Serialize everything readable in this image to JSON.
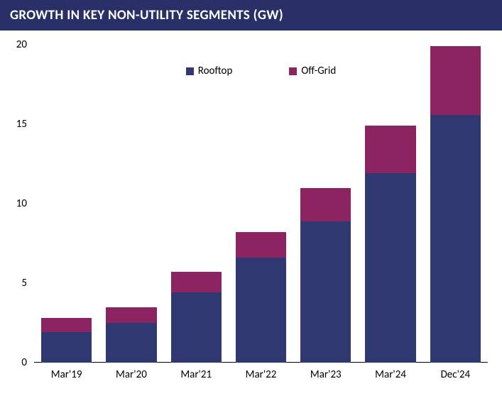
{
  "header": {
    "title": "GROWTH IN KEY NON-UTILITY SEGMENTS (GW)",
    "background_color": "#292f67",
    "text_color": "#ffffff",
    "fontsize": 19
  },
  "chart": {
    "type": "stacked-bar",
    "background_color": "#ffffff",
    "ylim": [
      0,
      20
    ],
    "ytick_step": 5,
    "yticks": [
      0,
      5,
      10,
      15,
      20
    ],
    "ytick_fontsize": 15,
    "xtick_fontsize": 15,
    "categories": [
      "Mar'19",
      "Mar'20",
      "Mar'21",
      "Mar'22",
      "Mar'23",
      "Mar'24",
      "Dec'24"
    ],
    "series": [
      {
        "name": "Rooftop",
        "color": "#2f3870",
        "values": [
          1.9,
          2.5,
          4.4,
          6.6,
          8.9,
          11.9,
          15.6
        ]
      },
      {
        "name": "Off-Grid",
        "color": "#8b2460",
        "values": [
          0.9,
          1.0,
          1.3,
          1.6,
          2.1,
          3.0,
          4.3
        ]
      }
    ],
    "bar_width_ratio": 0.78,
    "legend": {
      "fontsize": 15,
      "swatch_size": 11,
      "items": [
        {
          "label": "Rooftop",
          "color": "#2f3870"
        },
        {
          "label": "Off-Grid",
          "color": "#8b2460"
        }
      ]
    }
  }
}
